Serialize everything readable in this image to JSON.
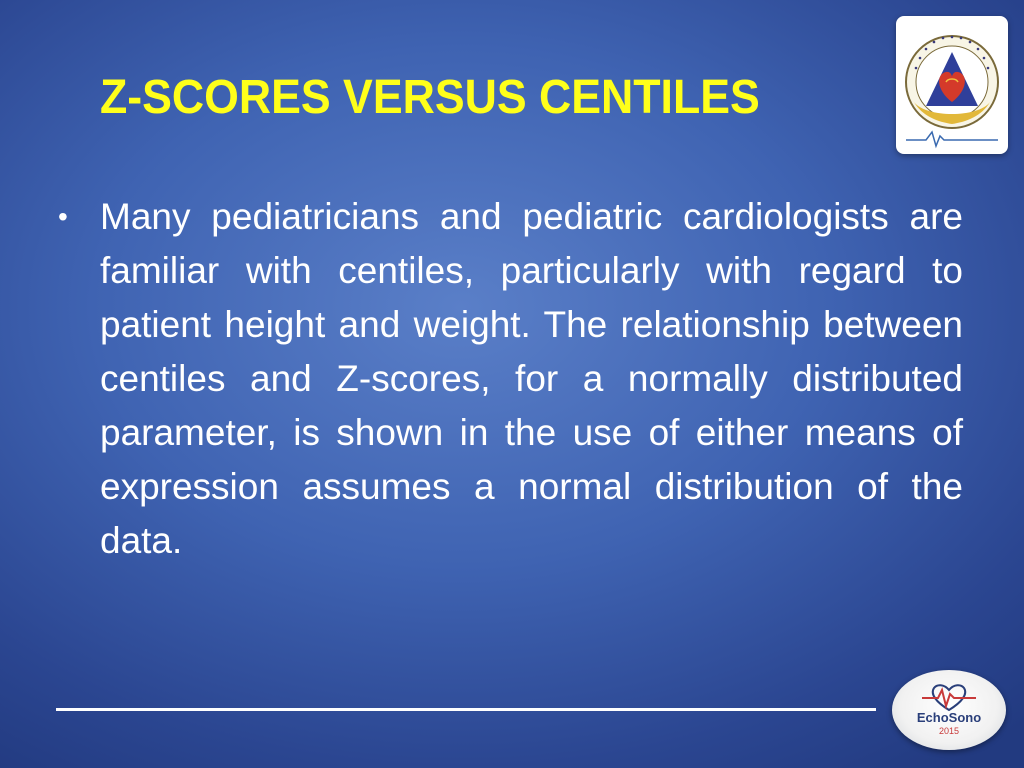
{
  "slide": {
    "title": "Z-SCORES VERSUS CENTILES",
    "bullets": [
      "Many pediatricians and pediatric cardiologists are familiar with centiles, particularly with regard to patient height and weight. The relationship between centiles and Z-scores, for a normally distributed parameter, is shown in the use of either means of expression assumes a normal distribution of the data."
    ],
    "bullet_glyph": "•"
  },
  "logos": {
    "top_right": {
      "icon": "association-emblem-icon",
      "curved_text": "Indian Academy of Echocardiography"
    },
    "bottom_right": {
      "icon": "echosono-logo-icon",
      "name": "EchoSono",
      "year": "2015"
    }
  },
  "colors": {
    "title": "#ffff1a",
    "text": "#ffffff",
    "background_center": "#5a7fc8",
    "background_edge": "#223a80"
  }
}
